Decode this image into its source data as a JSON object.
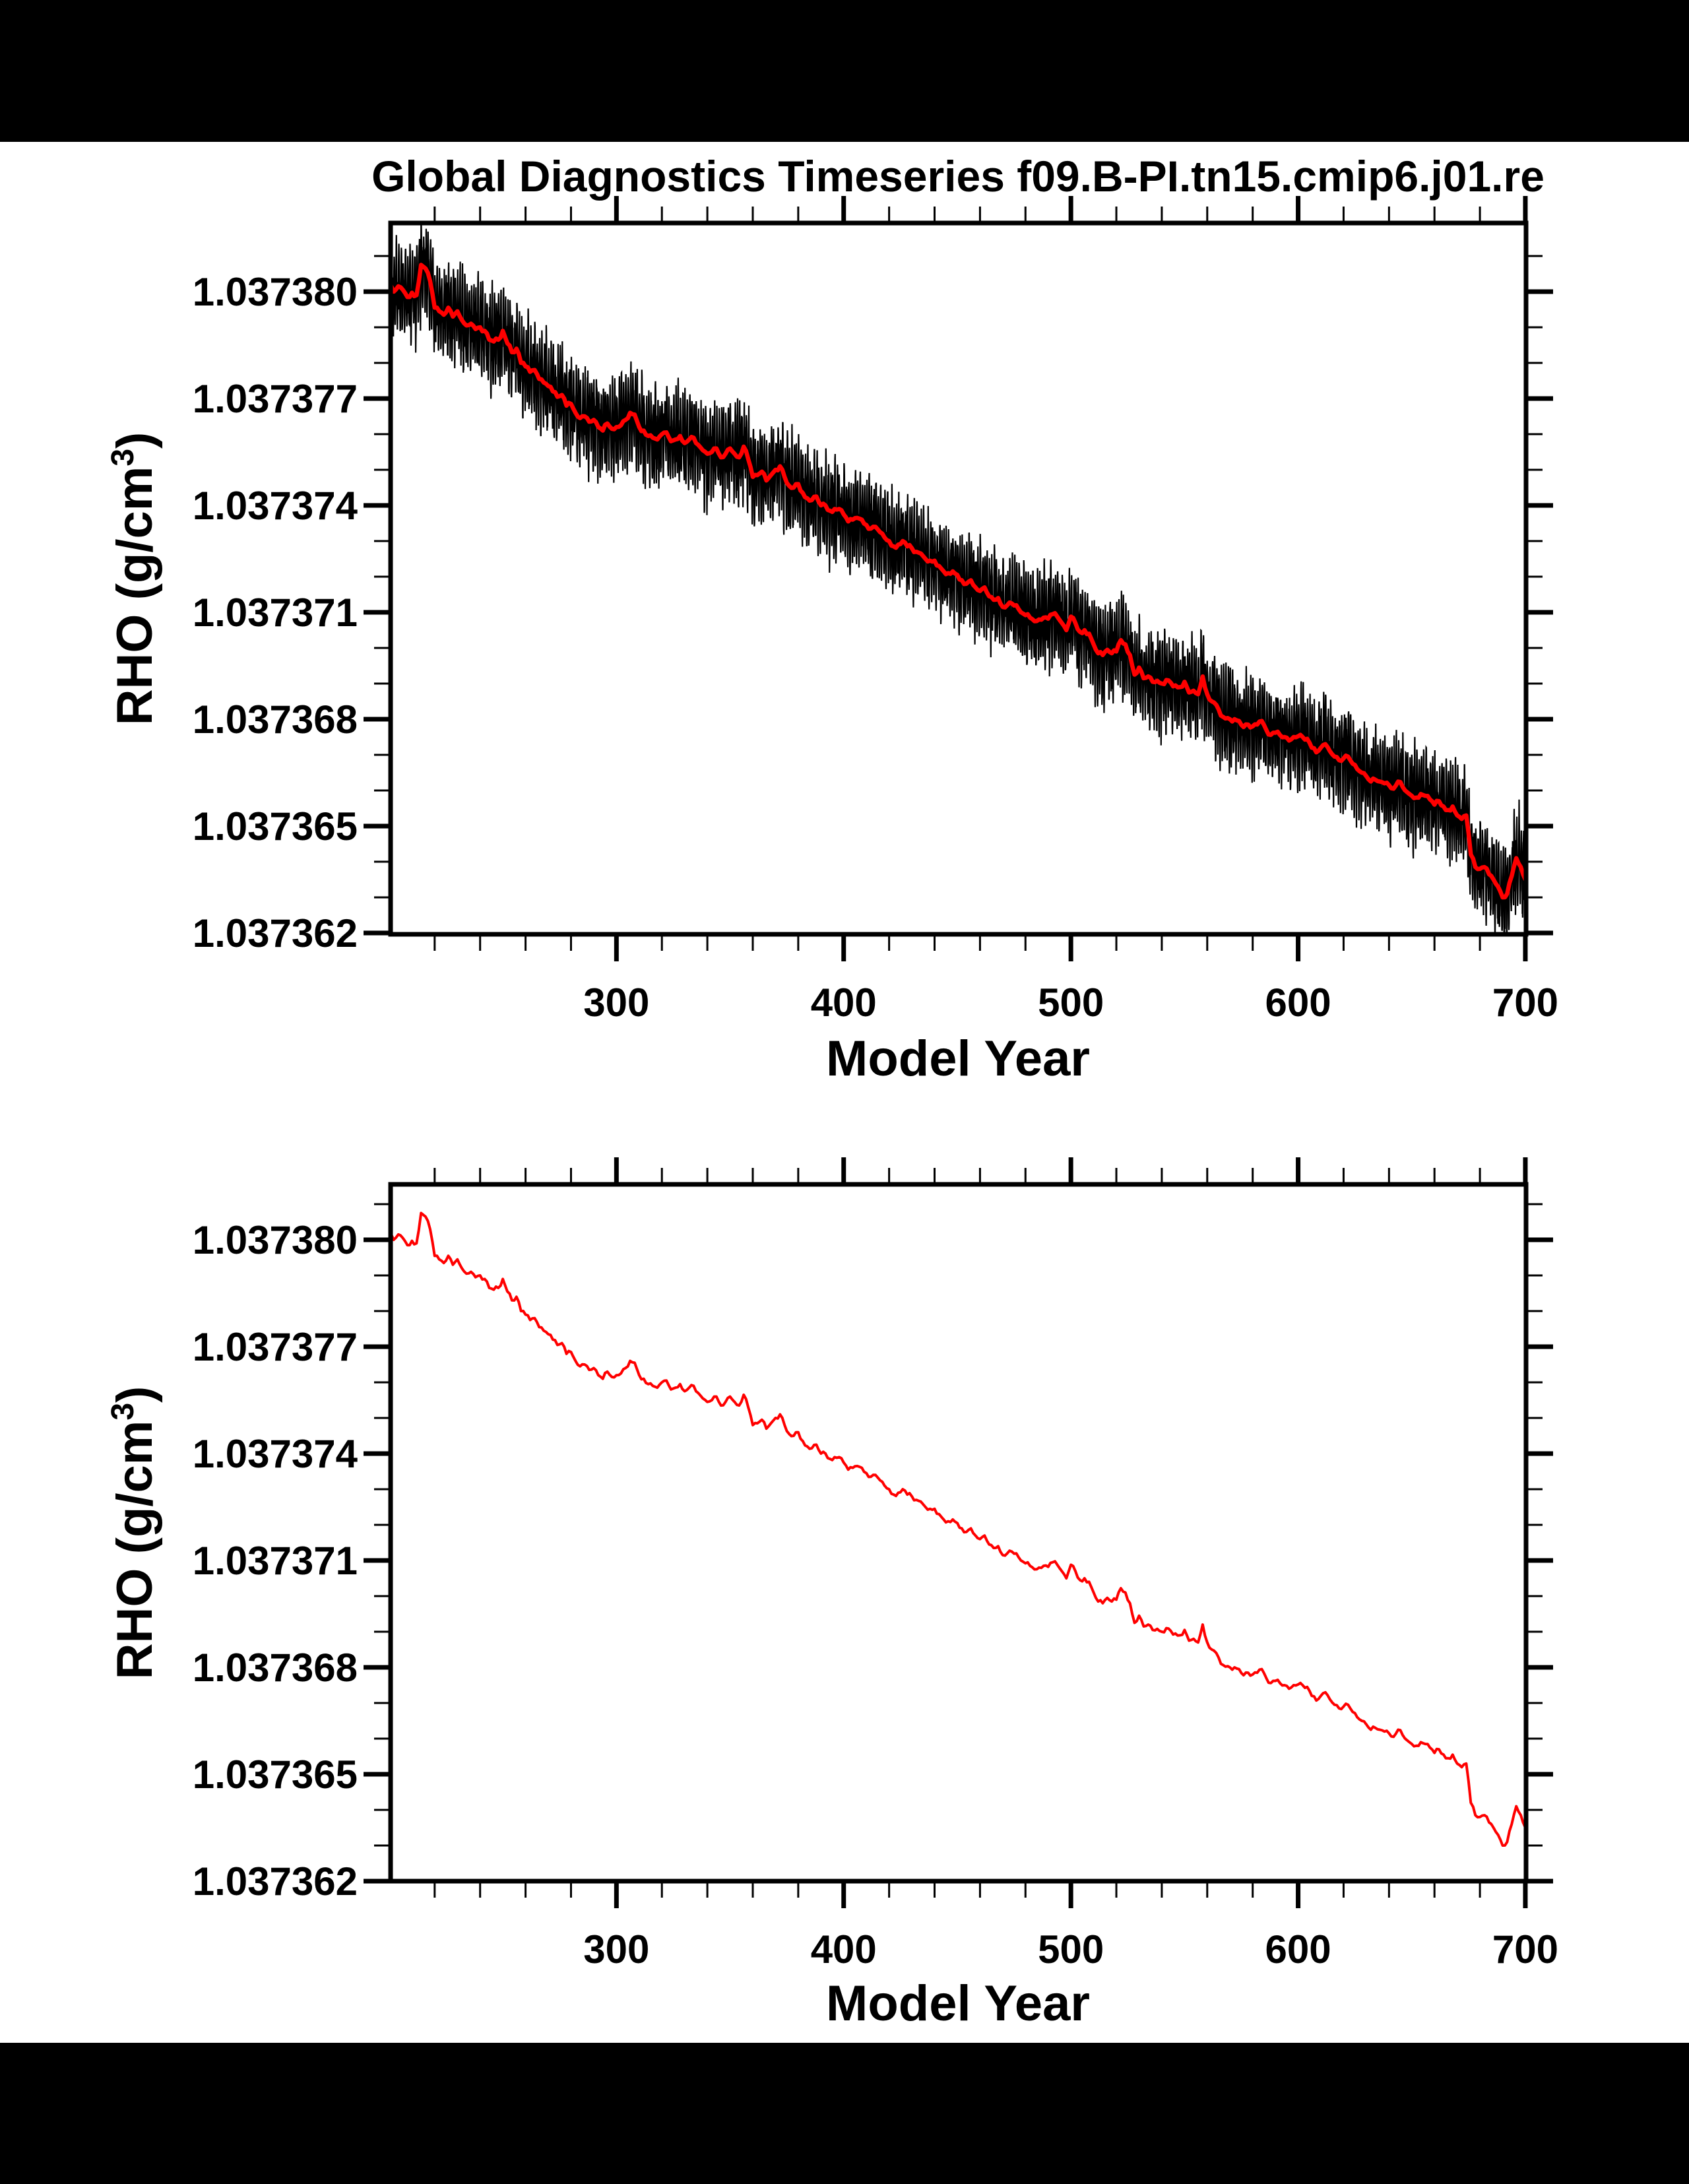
{
  "page": {
    "background": "#ffffff",
    "top_bar_color": "#000000",
    "bottom_bar_color": "#000000",
    "text_color": "#000000"
  },
  "chart_data": {
    "type": "line",
    "title": "Global Diagnostics Timeseries f09.B-PI.tn15.cmip6.j01.re",
    "xlabel": "Model Year",
    "ylabel": "RHO (g/cm3)",
    "ylabel_parts": {
      "prefix": "RHO (g/cm",
      "superscript": "3",
      "suffix": ")"
    },
    "xlim": [
      200.6,
      700.3
    ],
    "x_major_ticks": [
      300,
      400,
      500,
      600,
      700
    ],
    "x_tick_labels": [
      "300",
      "400",
      "500",
      "600",
      "700"
    ],
    "x_minor_tick_step": 20,
    "y_tick_labels": [
      "1.037380",
      "1.037377",
      "1.037374",
      "1.037371",
      "1.037368",
      "1.037365",
      "1.037362"
    ],
    "y_major_tick_offsets_1e6": [
      20,
      17,
      14,
      11,
      8,
      5,
      2
    ],
    "y_minor_tick_step": 1e-06,
    "grid": false,
    "legend": "none",
    "panels": [
      {
        "name": "monthly-and-annual",
        "ylim": [
          1.037362,
          1.0373819
        ],
        "series": [
          "monthly RHO",
          "annual mean RHO"
        ]
      },
      {
        "name": "annual-only",
        "ylim": [
          1.037362,
          1.0373816
        ],
        "series": [
          "annual mean RHO"
        ]
      }
    ],
    "series": [
      {
        "name": "monthly RHO",
        "color": "#000000",
        "line_width": 2.2,
        "description": "monthly RHO oscillating about the annual mean, estimated from plot",
        "seasonal_amplitude_1e6": 1.08,
        "random_amplitude_1e6": 0.5
      },
      {
        "name": "annual mean RHO",
        "color": "#ff0000",
        "line_width_top_panel": 6.5,
        "line_width_bottom_panel": 4
      }
    ],
    "annual_mean_rho": {
      "start_year": 202,
      "step_years": 2,
      "baseline": 1.03736,
      "unit": 1e-06,
      "offsets_1e6": [
        20,
        20.15,
        20.05,
        19.85,
        19.97,
        19.9,
        20.75,
        20.65,
        20.3,
        19.55,
        19.45,
        19.35,
        19.55,
        19.3,
        19.45,
        19.2,
        19.05,
        19.1,
        18.95,
        19,
        18.9,
        18.65,
        18.6,
        18.65,
        18.9,
        18.55,
        18.3,
        18.4,
        18,
        17.9,
        17.75,
        17.8,
        17.55,
        17.45,
        17.35,
        17.2,
        17.05,
        17.1,
        16.8,
        16.85,
        16.6,
        16.45,
        16.5,
        16.35,
        16.4,
        16.2,
        16.1,
        16.3,
        16.15,
        16.2,
        16.25,
        16.4,
        16.6,
        16.55,
        16.2,
        16.1,
        15.95,
        15.9,
        15.85,
        16,
        16.05,
        15.8,
        15.85,
        15.95,
        15.75,
        15.85,
        15.9,
        15.7,
        15.55,
        15.45,
        15.5,
        15.6,
        15.35,
        15.45,
        15.6,
        15.45,
        15.35,
        15.65,
        15.3,
        14.8,
        14.85,
        14.95,
        14.7,
        14.85,
        15,
        15.1,
        14.8,
        14.55,
        14.5,
        14.6,
        14.35,
        14.2,
        14.15,
        14.25,
        14,
        14,
        13.85,
        13.9,
        13.9,
        13.75,
        13.55,
        13.6,
        13.65,
        13.6,
        13.45,
        13.35,
        13.4,
        13.25,
        13.1,
        13,
        12.85,
        12.9,
        13,
        12.85,
        12.8,
        12.7,
        12.65,
        12.5,
        12.45,
        12.45,
        12.3,
        12.15,
        12.1,
        12.15,
        12.05,
        11.9,
        11.8,
        11.9,
        11.7,
        11.6,
        11.7,
        11.45,
        11.35,
        11.4,
        11.15,
        11.2,
        11.25,
        11.2,
        11,
        10.92,
        10.85,
        10.75,
        10.8,
        10.85,
        10.82,
        10.95,
        10.88,
        10.7,
        10.5,
        10.88,
        10.7,
        10.45,
        10.5,
        10.4,
        10.1,
        9.85,
        9.8,
        9.95,
        9.85,
        9.9,
        10.22,
        10.1,
        9.8,
        9.25,
        9.45,
        9.15,
        9.2,
        9.05,
        9.08,
        9,
        9.1,
        9.02,
        8.95,
        8.9,
        9.05,
        8.75,
        8.8,
        8.7,
        9.2,
        8.7,
        8.5,
        8.4,
        8.1,
        8.02,
        8,
        8,
        7.95,
        7.78,
        7.85,
        7.8,
        7.85,
        7.95,
        7.7,
        7.56,
        7.62,
        7.56,
        7.5,
        7.4,
        7.5,
        7.52,
        7.5,
        7.45,
        7.2,
        7.07,
        7.2,
        7.3,
        7.1,
        6.95,
        6.85,
        6.9,
        6.95,
        6.75,
        6.6,
        6.5,
        6.4,
        6.25,
        6.3,
        6.25,
        6.2,
        6.15,
        6.05,
        6.25,
        6.1,
        5.95,
        5.85,
        5.8,
        5.9,
        5.85,
        5.75,
        5.6,
        5.7,
        5.55,
        5.45,
        5.55,
        5.3,
        5.2,
        5.3,
        4.2,
        3.85,
        3.8,
        3.85,
        3.65,
        3.5,
        3.3,
        3,
        3.1,
        3.6,
        4.1,
        3.85,
        3.5
      ]
    }
  }
}
